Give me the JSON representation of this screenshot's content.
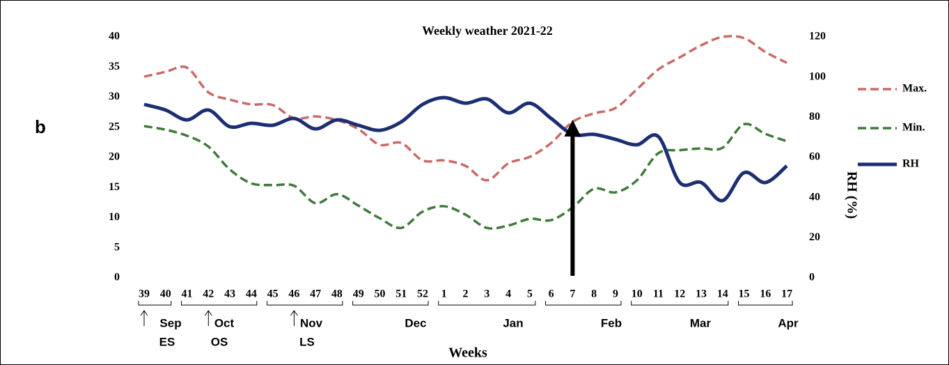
{
  "panel_label": "b",
  "chart_data": {
    "type": "line",
    "title": "Weekly weather 2021-22",
    "x_label": "Weeks",
    "y2_label": "RH (%)",
    "categories": [
      39,
      40,
      41,
      42,
      43,
      44,
      45,
      46,
      47,
      48,
      49,
      50,
      51,
      52,
      1,
      2,
      3,
      4,
      5,
      6,
      7,
      8,
      9,
      10,
      11,
      12,
      13,
      14,
      15,
      16,
      17
    ],
    "months": [
      "Sep",
      "Oct",
      "Nov",
      "Dec",
      "Jan",
      "Feb",
      "Mar",
      "Apr"
    ],
    "stage_labels": [
      "ES",
      "OS",
      "LS"
    ],
    "ylim": [
      0,
      40
    ],
    "yticks": [
      0,
      5,
      10,
      15,
      20,
      25,
      30,
      35,
      40
    ],
    "y2lim": [
      0,
      120
    ],
    "y2ticks": [
      0,
      20,
      40,
      60,
      80,
      100,
      120
    ],
    "series": [
      {
        "name": "Max.",
        "color": "#c96a68",
        "dash": true,
        "values": [
          33.4,
          34.2,
          34.9,
          30.8,
          29.6,
          28.8,
          28.7,
          26.5,
          26.8,
          26.2,
          24.7,
          22.1,
          22.4,
          19.5,
          19.5,
          18.6,
          16.2,
          19.0,
          20.1,
          22.4,
          25.9,
          27.3,
          28.2,
          31.3,
          34.6,
          36.6,
          38.6,
          40.0,
          39.8,
          37.5,
          35.7
        ]
      },
      {
        "name": "Min.",
        "color": "#3f7a3a",
        "dash": true,
        "values": [
          25.2,
          24.6,
          23.6,
          21.8,
          18.0,
          15.7,
          15.4,
          15.3,
          12.4,
          13.9,
          12.0,
          9.9,
          8.3,
          11.0,
          11.9,
          10.5,
          8.3,
          8.7,
          9.8,
          9.6,
          11.7,
          14.8,
          14.2,
          16.2,
          20.7,
          21.2,
          21.5,
          21.6,
          25.5,
          23.9,
          22.7
        ]
      },
      {
        "name": "RH",
        "color": "#1b2f72",
        "dash": false,
        "axis": "y2",
        "values": [
          86.4,
          83.6,
          78.7,
          83.6,
          75.3,
          77.0,
          76.0,
          79.4,
          74.2,
          78.7,
          76.0,
          73.5,
          77.7,
          86.4,
          89.8,
          87.0,
          89.1,
          82.2,
          87.0,
          79.4,
          71.5,
          71.5,
          69.0,
          66.3,
          70.4,
          47.5,
          47.5,
          38.5,
          52.4,
          47.5,
          55.8
        ]
      }
    ]
  }
}
